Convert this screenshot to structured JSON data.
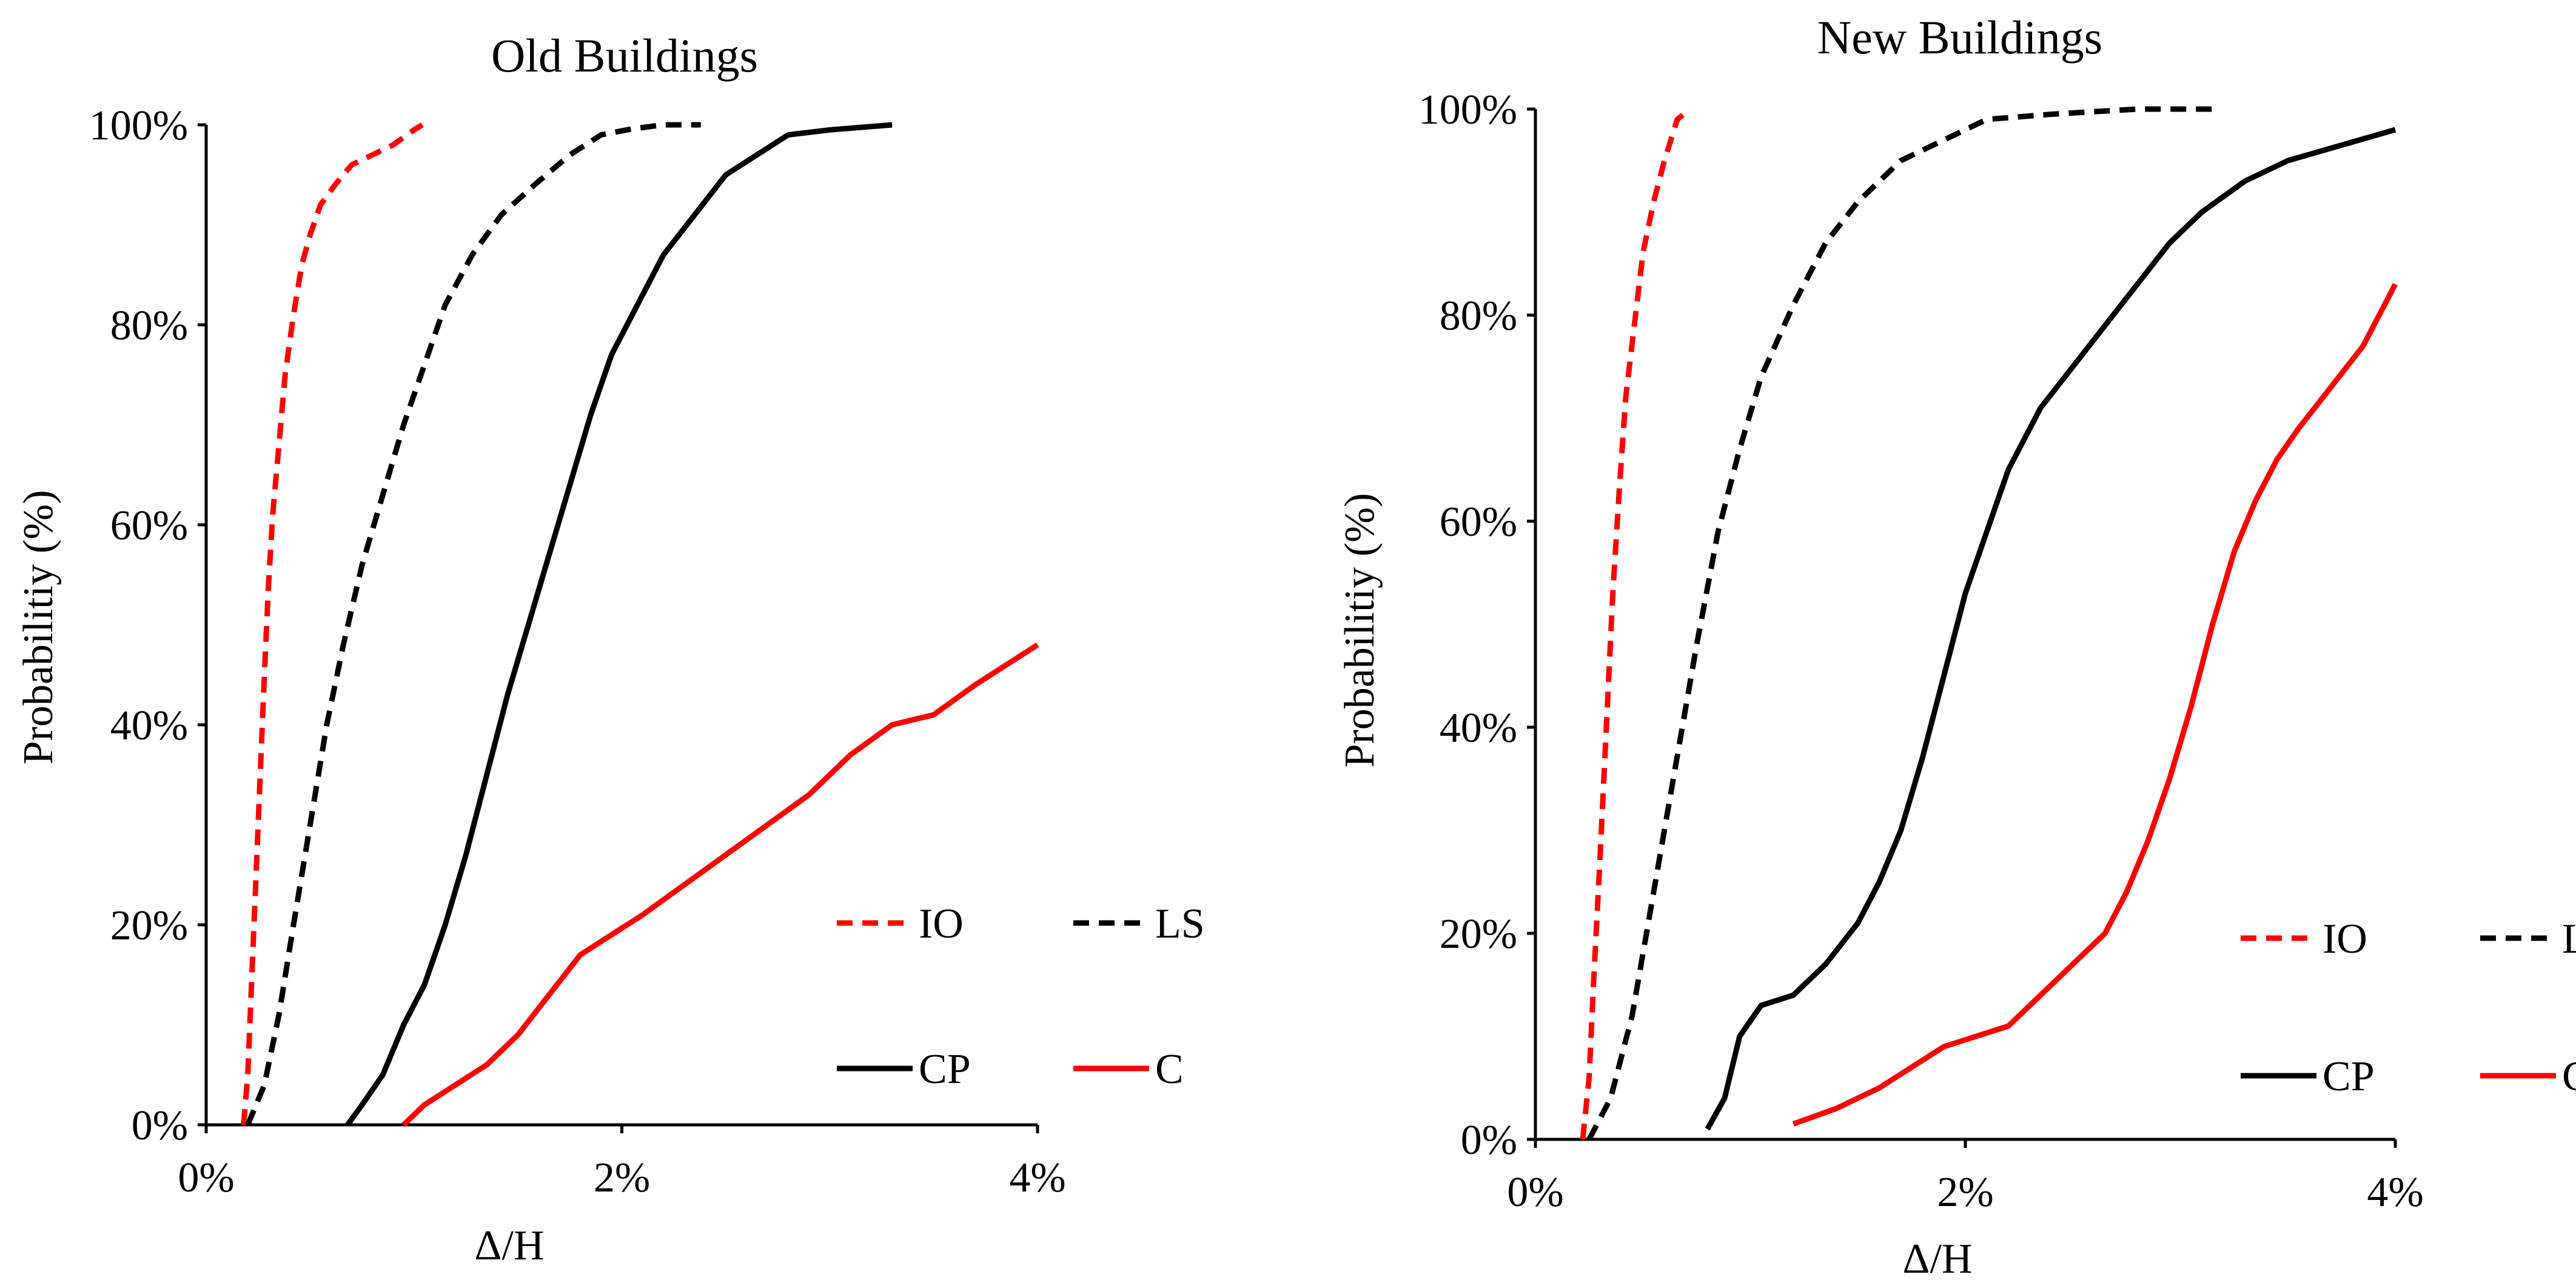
{
  "chart_data": [
    {
      "type": "line",
      "title": "Old Buildings",
      "xlabel": "Δ/H",
      "ylabel": "Probabilitiy (%)",
      "xlim": [
        0,
        4
      ],
      "ylim": [
        0,
        100
      ],
      "x_ticks": [
        0,
        2,
        4
      ],
      "x_tick_labels": [
        "0%",
        "2%",
        "4%"
      ],
      "y_ticks": [
        0,
        20,
        40,
        60,
        80,
        100
      ],
      "y_tick_labels": [
        "0%",
        "20%",
        "40%",
        "60%",
        "80%",
        "100%"
      ],
      "grid": false,
      "legend_position": "bottom-right",
      "series": [
        {
          "name": "IO",
          "color": "#ff0000",
          "dash": true,
          "x": [
            0.18,
            0.2,
            0.22,
            0.24,
            0.26,
            0.28,
            0.3,
            0.32,
            0.35,
            0.38,
            0.42,
            0.46,
            0.5,
            0.55,
            0.62,
            0.7,
            0.8,
            0.9,
            1.0,
            1.04
          ],
          "y": [
            0,
            5,
            15,
            25,
            35,
            45,
            54,
            61,
            68,
            75,
            81,
            86,
            89,
            92,
            94,
            96,
            97,
            98,
            99.5,
            100
          ]
        },
        {
          "name": "LS",
          "color": "#000000",
          "dash": true,
          "x": [
            0.2,
            0.28,
            0.35,
            0.42,
            0.5,
            0.58,
            0.66,
            0.75,
            0.85,
            0.95,
            1.05,
            1.15,
            1.28,
            1.42,
            1.58,
            1.75,
            1.9,
            2.05,
            2.2,
            2.38
          ],
          "y": [
            0,
            4,
            11,
            20,
            30,
            40,
            48,
            56,
            63,
            70,
            76,
            82,
            87,
            91,
            94,
            97,
            99,
            99.6,
            100,
            100
          ]
        },
        {
          "name": "CP",
          "color": "#000000",
          "dash": false,
          "x": [
            0.68,
            0.75,
            0.85,
            0.95,
            1.05,
            1.15,
            1.25,
            1.35,
            1.45,
            1.55,
            1.65,
            1.75,
            1.85,
            1.95,
            2.05,
            2.2,
            2.35,
            2.5,
            2.65,
            2.8,
            3.0,
            3.3
          ],
          "y": [
            0,
            2,
            5,
            10,
            14,
            20,
            27,
            35,
            43,
            50,
            57,
            64,
            71,
            77,
            81,
            87,
            91,
            95,
            97,
            99,
            99.5,
            100
          ]
        },
        {
          "name": "C",
          "color": "#ff0000",
          "dash": false,
          "x": [
            0.95,
            1.05,
            1.2,
            1.35,
            1.5,
            1.65,
            1.8,
            1.95,
            2.1,
            2.3,
            2.5,
            2.7,
            2.9,
            3.1,
            3.3,
            3.5,
            3.7,
            3.85,
            4.0
          ],
          "y": [
            0,
            2,
            4,
            6,
            9,
            13,
            17,
            19,
            21,
            24,
            27,
            30,
            33,
            37,
            40,
            41,
            44,
            46,
            48
          ]
        }
      ]
    },
    {
      "type": "line",
      "title": "New Buildings",
      "xlabel": "Δ/H",
      "ylabel": "Probabilitiy (%)",
      "xlim": [
        0,
        4
      ],
      "ylim": [
        0,
        100
      ],
      "x_ticks": [
        0,
        2,
        4
      ],
      "x_tick_labels": [
        "0%",
        "2%",
        "4%"
      ],
      "y_ticks": [
        0,
        20,
        40,
        60,
        80,
        100
      ],
      "y_tick_labels": [
        "0%",
        "20%",
        "40%",
        "60%",
        "80%",
        "100%"
      ],
      "grid": false,
      "legend_position": "bottom-right",
      "series": [
        {
          "name": "IO",
          "color": "#ff0000",
          "dash": true,
          "x": [
            0.22,
            0.25,
            0.27,
            0.3,
            0.33,
            0.36,
            0.39,
            0.42,
            0.46,
            0.5,
            0.55,
            0.6,
            0.66,
            0.72
          ],
          "y": [
            0,
            6,
            15,
            27,
            40,
            53,
            63,
            72,
            79,
            86,
            91,
            95,
            99,
            100
          ]
        },
        {
          "name": "LS",
          "color": "#000000",
          "dash": true,
          "x": [
            0.25,
            0.35,
            0.45,
            0.55,
            0.65,
            0.75,
            0.85,
            0.95,
            1.05,
            1.2,
            1.35,
            1.5,
            1.7,
            1.9,
            2.1,
            2.4,
            2.8,
            3.15
          ],
          "y": [
            0,
            4,
            12,
            24,
            36,
            48,
            59,
            67,
            74,
            81,
            87,
            91,
            95,
            97,
            99,
            99.5,
            100,
            100
          ]
        },
        {
          "name": "CP",
          "color": "#000000",
          "dash": false,
          "x": [
            0.8,
            0.88,
            0.95,
            1.05,
            1.2,
            1.35,
            1.5,
            1.6,
            1.7,
            1.8,
            1.9,
            2.0,
            2.1,
            2.2,
            2.35,
            2.5,
            2.65,
            2.8,
            2.95,
            3.1,
            3.3,
            3.5,
            3.75,
            4.0
          ],
          "y": [
            1,
            4,
            10,
            13,
            14,
            17,
            21,
            25,
            30,
            37,
            45,
            53,
            59,
            65,
            71,
            75,
            79,
            83,
            87,
            90,
            93,
            95,
            96.5,
            98
          ]
        },
        {
          "name": "C",
          "color": "#ff0000",
          "dash": false,
          "x": [
            1.2,
            1.4,
            1.6,
            1.75,
            1.9,
            2.05,
            2.2,
            2.35,
            2.5,
            2.65,
            2.75,
            2.85,
            2.95,
            3.05,
            3.15,
            3.25,
            3.35,
            3.45,
            3.55,
            3.7,
            3.85,
            4.0
          ],
          "y": [
            1.5,
            3,
            5,
            7,
            9,
            10,
            11,
            14,
            17,
            20,
            24,
            29,
            35,
            42,
            50,
            57,
            62,
            66,
            69,
            73,
            77,
            83
          ]
        }
      ]
    }
  ]
}
